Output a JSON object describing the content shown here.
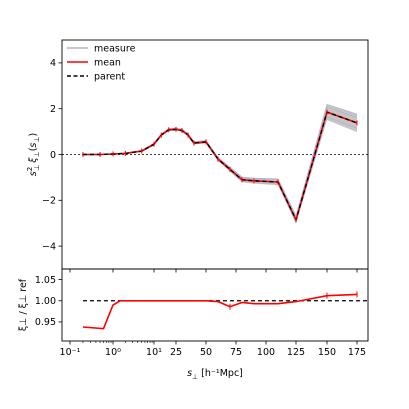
{
  "chart_data": {
    "type": "line",
    "legend": {
      "placement": "top-left",
      "entries": [
        {
          "label": "measure",
          "color": "#b0b4cc",
          "style": "solid"
        },
        {
          "label": "mean",
          "color": "#ff0000",
          "style": "solid"
        },
        {
          "label": "parent",
          "color": "#000000",
          "style": "dashed"
        }
      ]
    },
    "x_axis": {
      "label_prefix": "s",
      "label_sub": "⊥",
      "label_unit": " [h⁻¹Mpc]",
      "scale": "custom: log-like below 1, then linear-like spacing",
      "ticks": [
        "10⁻¹",
        "10⁰",
        "10¹",
        "25",
        "50",
        "75",
        "100",
        "125",
        "150",
        "175"
      ],
      "tick_values": [
        0.1,
        1,
        10,
        25,
        50,
        75,
        100,
        125,
        150,
        175
      ]
    },
    "top_panel": {
      "ylabel_main": "s",
      "ylabel_sup": "2",
      "ylabel_sub": "⊥",
      "ylabel_rest": "ξ",
      "ylim": [
        -5,
        5
      ],
      "yticks": [
        "4",
        "2",
        "0",
        "−2",
        "−4"
      ],
      "ytick_values": [
        4,
        2,
        0,
        -2,
        -4
      ],
      "zero_line": true,
      "x": [
        0.2,
        0.5,
        1,
        2,
        5,
        10,
        15,
        20,
        25,
        30,
        35,
        40,
        50,
        60,
        70,
        80,
        90,
        110,
        125,
        150,
        175
      ],
      "mean": [
        0.0,
        0.0,
        0.02,
        0.05,
        0.15,
        0.45,
        0.85,
        1.08,
        1.1,
        1.05,
        0.85,
        0.5,
        0.55,
        -0.2,
        -0.65,
        -1.1,
        -1.15,
        -1.2,
        -2.85,
        1.85,
        1.38
      ],
      "band_halfwidth": [
        0.02,
        0.02,
        0.02,
        0.02,
        0.03,
        0.05,
        0.05,
        0.06,
        0.06,
        0.06,
        0.06,
        0.06,
        0.07,
        0.08,
        0.1,
        0.12,
        0.12,
        0.14,
        0.18,
        0.35,
        0.4
      ]
    },
    "bottom_panel": {
      "ylabel": "ξ⊥ / ξ⊥ ref",
      "ylim": [
        0.905,
        1.075
      ],
      "yticks": [
        "1.05",
        "1.00",
        "0.95"
      ],
      "ytick_values": [
        1.05,
        1.0,
        0.95
      ],
      "reference_line": 1.0,
      "x": [
        0.2,
        0.6,
        1,
        1.5,
        3,
        10,
        25,
        50,
        60,
        70,
        80,
        90,
        110,
        125,
        150,
        175
      ],
      "ratio": [
        0.938,
        0.934,
        0.99,
        1.0,
        1.0,
        1.0,
        1.0,
        1.0,
        0.998,
        0.986,
        0.996,
        0.993,
        0.993,
        0.998,
        1.012,
        1.015
      ]
    }
  }
}
